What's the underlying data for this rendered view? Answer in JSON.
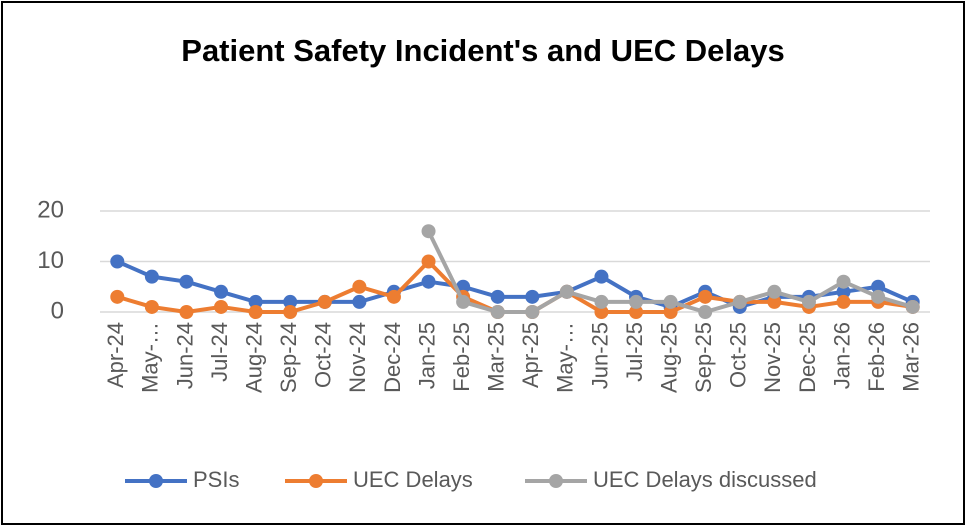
{
  "chart_data": {
    "type": "line",
    "title": "Patient Safety Incident's and UEC Delays",
    "categories": [
      "Apr-24",
      "May-…",
      "Jun-24",
      "Jul-24",
      "Aug-24",
      "Sep-24",
      "Oct-24",
      "Nov-24",
      "Dec-24",
      "Jan-25",
      "Feb-25",
      "Mar-25",
      "Apr-25",
      "May-…",
      "Jun-25",
      "Jul-25",
      "Aug-25",
      "Sep-25",
      "Oct-25",
      "Nov-25",
      "Dec-25",
      "Jan-26",
      "Feb-26",
      "Mar-26"
    ],
    "series": [
      {
        "name": "PSIs",
        "color": "#4472c4",
        "values": [
          10,
          7,
          6,
          4,
          2,
          2,
          2,
          2,
          4,
          6,
          5,
          3,
          3,
          4,
          7,
          3,
          1,
          4,
          1,
          3,
          3,
          4,
          5,
          2
        ]
      },
      {
        "name": "UEC Delays",
        "color": "#ed7d31",
        "values": [
          3,
          1,
          0,
          1,
          0,
          0,
          2,
          5,
          3,
          10,
          3,
          0,
          0,
          4,
          0,
          0,
          0,
          3,
          2,
          2,
          1,
          2,
          2,
          1
        ]
      },
      {
        "name": "UEC Delays discussed",
        "color": "#a5a5a5",
        "values": [
          null,
          null,
          null,
          null,
          null,
          null,
          null,
          null,
          null,
          16,
          2,
          0,
          0,
          4,
          2,
          2,
          2,
          0,
          2,
          4,
          2,
          6,
          3,
          1
        ]
      }
    ],
    "ylim": [
      0,
      20
    ],
    "yticks": [
      0,
      10,
      20
    ],
    "grid": true,
    "legend": "bottom"
  }
}
